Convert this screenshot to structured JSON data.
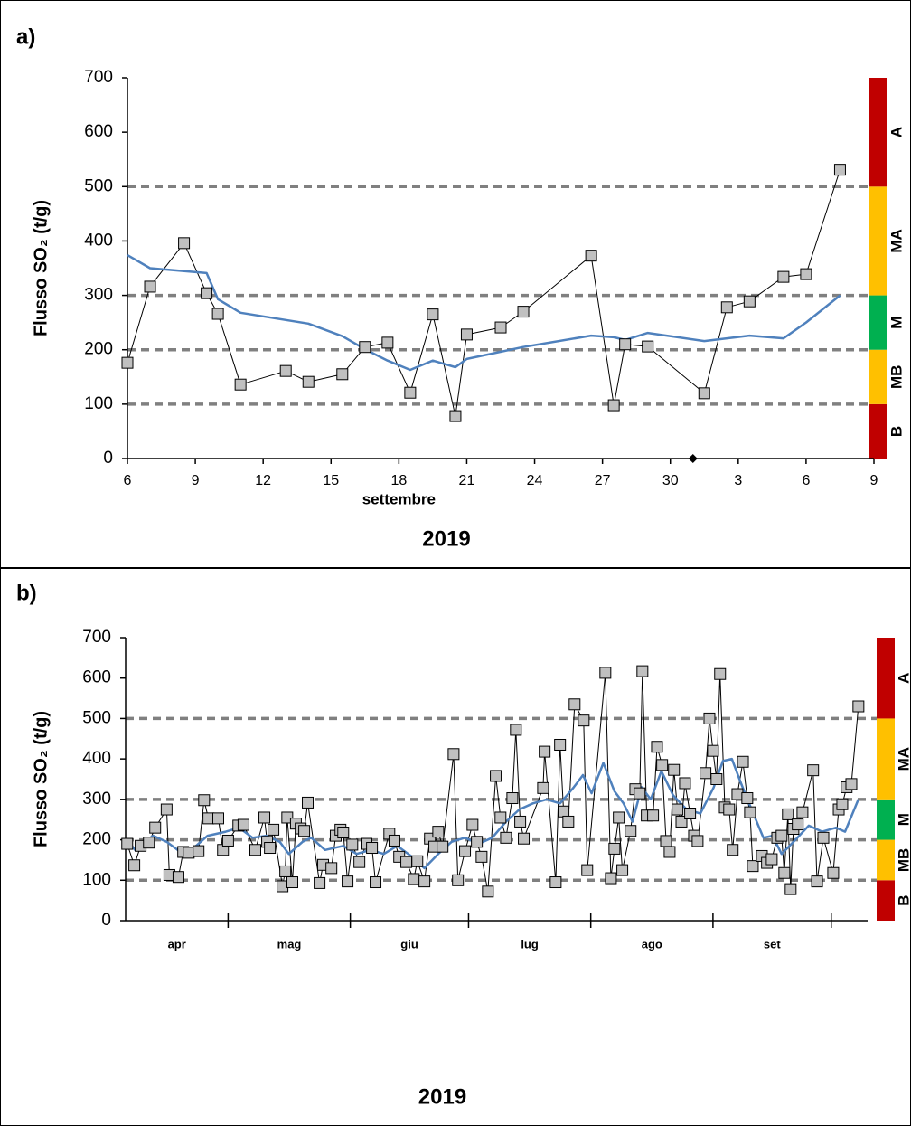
{
  "chart_data": [
    {
      "type": "line",
      "panel_label": "a)",
      "title": "2019",
      "xlabel": "settembre",
      "ylabel": "Flusso SO₂ (t/g)",
      "xlim": [
        6,
        39
      ],
      "xticks": [
        6,
        9,
        12,
        15,
        18,
        21,
        24,
        27,
        30,
        {
          "value": 33,
          "label": "3"
        },
        {
          "value": 36,
          "label": "6"
        },
        {
          "value": 39,
          "label": "9"
        }
      ],
      "ylim": [
        0,
        700
      ],
      "yticks": [
        0,
        100,
        200,
        300,
        400,
        500,
        600,
        700
      ],
      "thresholds": [
        100,
        200,
        300,
        500
      ],
      "threshold_color": "#808080",
      "levels": [
        {
          "label": "B",
          "from": 0,
          "to": 100,
          "color": "#c00000"
        },
        {
          "label": "MB",
          "from": 100,
          "to": 200,
          "color": "#ffc000"
        },
        {
          "label": "M",
          "from": 200,
          "to": 300,
          "color": "#00b050"
        },
        {
          "label": "MA",
          "from": 300,
          "to": 500,
          "color": "#ffc000"
        },
        {
          "label": "A",
          "from": 500,
          "to": 700,
          "color": "#c00000"
        }
      ],
      "event_x": [
        31
      ],
      "series": [
        {
          "color": "#000000",
          "marker": "square",
          "marker_color": "#c0c0c0",
          "x": [
            6,
            7,
            8.5,
            9.5,
            10,
            11,
            13,
            14,
            15.5,
            16.5,
            17.5,
            18.5,
            19.5,
            20.5,
            21,
            22.5,
            23.5,
            26.5,
            27.5,
            28,
            29,
            31.5,
            32.5,
            33.5,
            35,
            36,
            37.5
          ],
          "values": [
            176,
            316,
            396,
            304,
            266,
            136,
            161,
            141,
            155,
            205,
            213,
            121,
            265,
            78,
            228,
            241,
            270,
            373,
            98,
            210,
            206,
            120,
            278,
            289,
            334,
            339,
            531
          ]
        },
        {
          "color": "#4f81bd",
          "x": [
            6,
            7,
            9.5,
            10,
            11,
            14,
            15.5,
            16.5,
            17.5,
            18.5,
            19.5,
            20.5,
            21,
            23.5,
            26.5,
            27.5,
            28,
            29,
            31.5,
            33.5,
            35,
            36,
            37.5
          ],
          "values": [
            374,
            350,
            341,
            293,
            268,
            248,
            225,
            201,
            180,
            163,
            180,
            168,
            183,
            205,
            226,
            223,
            218,
            231,
            216,
            226,
            221,
            250,
            300
          ]
        }
      ]
    },
    {
      "type": "line",
      "panel_label": "b)",
      "title": "2019",
      "ylabel": "Flusso SO₂ (t/g)",
      "xlim": [
        4,
        192
      ],
      "categories": [
        "apr",
        "mag",
        "giu",
        "lug",
        "ago",
        "set"
      ],
      "month_bounds": [
        30,
        61,
        91,
        122,
        153,
        183
      ],
      "ylim": [
        0,
        700
      ],
      "yticks": [
        0,
        100,
        200,
        300,
        400,
        500,
        600,
        700
      ],
      "thresholds": [
        100,
        200,
        300,
        500
      ],
      "threshold_color": "#808080",
      "levels": [
        {
          "label": "B",
          "from": 0,
          "to": 100,
          "color": "#c00000"
        },
        {
          "label": "MB",
          "from": 100,
          "to": 200,
          "color": "#ffc000"
        },
        {
          "label": "M",
          "from": 200,
          "to": 300,
          "color": "#00b050"
        },
        {
          "label": "MA",
          "from": 300,
          "to": 500,
          "color": "#ffc000"
        },
        {
          "label": "A",
          "from": 500,
          "to": 700,
          "color": "#c00000"
        }
      ],
      "series": [
        {
          "color": "#000000",
          "marker": "square",
          "marker_color": "#c0c0c0",
          "x": [
            4.4,
            6.2,
            7.8,
            9.9,
            11.5,
            14.4,
            15.1,
            17.4,
            18.6,
            20.0,
            22.5,
            23.9,
            25.0,
            27.5,
            28.7,
            30.0,
            32.6,
            33.9,
            36.9,
            39.2,
            39.9,
            40.6,
            41.5,
            43.8,
            44.5,
            45.0,
            46.3,
            47.2,
            48.4,
            49.3,
            50.2,
            53.2,
            54.1,
            56.2,
            57.3,
            58.5,
            59.2,
            60.3,
            61.5,
            63.3,
            65.1,
            66.5,
            67.4,
            70.9,
            72.2,
            73.4,
            75.2,
            77.1,
            78.0,
            79.8,
            81.2,
            82.3,
            83.3,
            84.4,
            87.2,
            88.3,
            90.1,
            92.0,
            93.1,
            94.3,
            95.9,
            97.9,
            99.1,
            100.5,
            102.1,
            103.0,
            104.1,
            105.0,
            109.9,
            110.3,
            113.1,
            114.2,
            115.1,
            116.3,
            117.9,
            120.2,
            121.1,
            125.7,
            127.1,
            128.0,
            129.1,
            130.0,
            132.1,
            133.3,
            134.4,
            135.1,
            136.2,
            137.8,
            138.8,
            140.1,
            141.1,
            142.0,
            143.1,
            144.0,
            145.0,
            145.9,
            147.2,
            148.2,
            149.1,
            151.1,
            152.1,
            153.0,
            153.9,
            154.8,
            156.0,
            157.1,
            158.0,
            159.2,
            160.6,
            161.7,
            162.4,
            163.1,
            165.4,
            166.7,
            167.9,
            169.3,
            170.4,
            171.1,
            172.0,
            172.7,
            173.4,
            174.5,
            175.7,
            178.4,
            179.4,
            181.0,
            183.5,
            184.9,
            185.8,
            186.9,
            188.1,
            189.9
          ],
          "values": [
            190,
            137,
            185,
            193,
            230,
            275,
            113,
            108,
            170,
            168,
            172,
            298,
            253,
            253,
            175,
            198,
            235,
            237,
            175,
            255,
            195,
            180,
            225,
            85,
            122,
            255,
            95,
            240,
            228,
            222,
            292,
            93,
            138,
            130,
            210,
            225,
            218,
            97,
            188,
            145,
            190,
            180,
            95,
            215,
            198,
            158,
            145,
            103,
            147,
            97,
            203,
            183,
            220,
            183,
            412,
            100,
            172,
            237,
            195,
            158,
            72,
            358,
            255,
            205,
            303,
            472,
            245,
            203,
            328,
            418,
            95,
            435,
            270,
            245,
            535,
            495,
            125,
            613,
            105,
            178,
            255,
            125,
            222,
            325,
            315,
            617,
            260,
            260,
            430,
            385,
            197,
            170,
            373,
            275,
            245,
            340,
            265,
            210,
            197,
            365,
            500,
            420,
            350,
            610,
            280,
            275,
            175,
            313,
            393,
            303,
            268,
            135,
            160,
            143,
            152,
            205,
            210,
            118,
            263,
            78,
            227,
            238,
            268,
            372,
            97,
            205,
            118,
            275,
            288,
            330,
            338,
            530
          ]
        },
        {
          "color": "#4f81bd",
          "x": [
            4.4,
            6.4,
            8.7,
            11.0,
            14.4,
            17.9,
            21.3,
            24.8,
            29.4,
            32.8,
            36.2,
            39.7,
            43.1,
            45.4,
            48.9,
            51.1,
            54.6,
            59.2,
            62.6,
            66.1,
            69.5,
            72.9,
            76.4,
            79.8,
            83.3,
            86.7,
            90.1,
            93.6,
            97.0,
            100.5,
            103.9,
            107.3,
            110.8,
            114.2,
            117.7,
            120.0,
            122.2,
            125.2,
            128.0,
            130.3,
            132.6,
            134.9,
            137.2,
            139.9,
            142.9,
            146.3,
            149.8,
            153.2,
            155.5,
            157.8,
            160.1,
            162.8,
            165.8,
            168.1,
            170.4,
            173.9,
            177.3,
            180.7,
            184.2,
            186.5,
            189.9
          ],
          "values": [
            200,
            175,
            195,
            210,
            195,
            170,
            180,
            210,
            220,
            230,
            205,
            210,
            195,
            165,
            195,
            205,
            175,
            185,
            165,
            175,
            165,
            185,
            160,
            130,
            165,
            195,
            205,
            190,
            205,
            245,
            275,
            290,
            300,
            290,
            330,
            360,
            315,
            390,
            320,
            290,
            245,
            330,
            300,
            370,
            310,
            275,
            265,
            330,
            395,
            400,
            340,
            275,
            205,
            210,
            165,
            200,
            235,
            220,
            230,
            220,
            300
          ]
        }
      ]
    }
  ]
}
